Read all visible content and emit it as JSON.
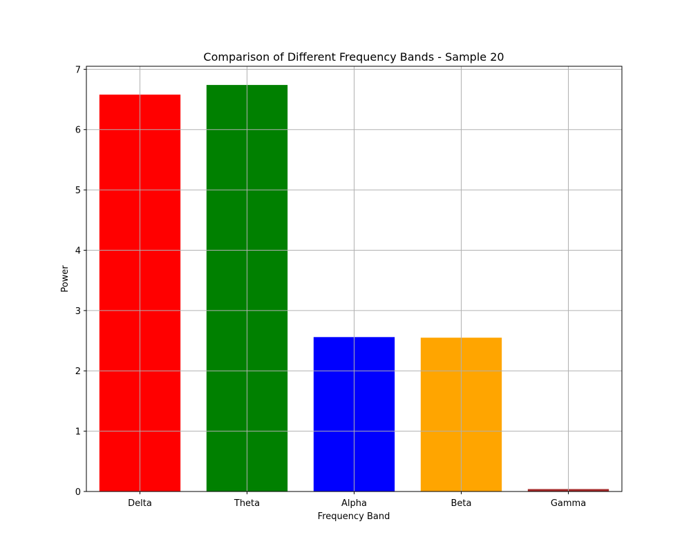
{
  "chart_data": {
    "type": "bar",
    "title": "Comparison of Different Frequency Bands - Sample 20",
    "xlabel": "Frequency Band",
    "ylabel": "Power",
    "categories": [
      "Delta",
      "Theta",
      "Alpha",
      "Beta",
      "Gamma"
    ],
    "values": [
      6.58,
      6.74,
      2.56,
      2.55,
      0.04
    ],
    "colors": [
      "#ff0000",
      "#008000",
      "#0000ff",
      "#ffa500",
      "#a52a2a"
    ],
    "ylim": [
      0,
      7.05
    ],
    "yticks": [
      0,
      1,
      2,
      3,
      4,
      5,
      6,
      7
    ],
    "grid": true,
    "legend": "none"
  }
}
